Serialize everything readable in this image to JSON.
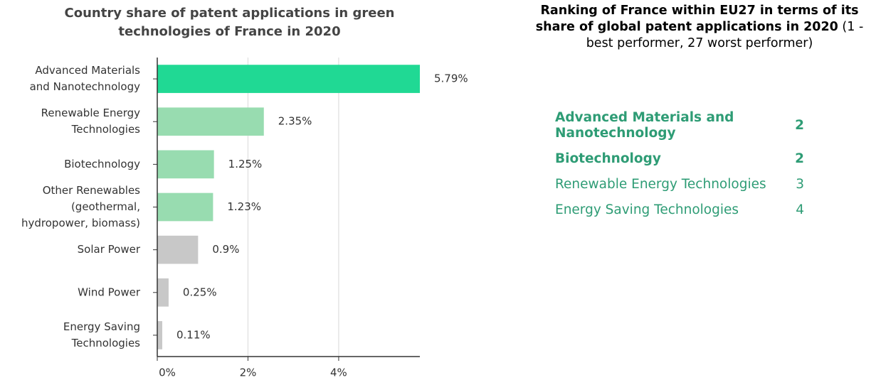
{
  "chart_data": {
    "type": "bar",
    "orientation": "horizontal",
    "title": "Country share of patent applications in green technologies of France in 2020",
    "categories": [
      [
        "Advanced Materials",
        "and Nanotechnology"
      ],
      [
        "Renewable Energy",
        "Technologies"
      ],
      [
        "Biotechnology"
      ],
      [
        "Other Renewables",
        "(geothermal,",
        "hydropower, biomass)"
      ],
      [
        "Solar Power"
      ],
      [
        "Wind Power"
      ],
      [
        "Energy Saving",
        "Technologies"
      ]
    ],
    "values": [
      5.79,
      2.35,
      1.25,
      1.23,
      0.9,
      0.25,
      0.11
    ],
    "value_labels": [
      "5.79%",
      "2.35%",
      "1.25%",
      "1.23%",
      "0.9%",
      "0.25%",
      "0.11%"
    ],
    "colors": [
      "#20d994",
      "#98dcb0",
      "#98dcb0",
      "#98dcb0",
      "#c8c8c8",
      "#c8c8c8",
      "#c8c8c8"
    ],
    "xlim": [
      0,
      5.79
    ],
    "xticks": [
      {
        "value": 0,
        "label": "0%"
      },
      {
        "value": 2,
        "label": "2%"
      },
      {
        "value": 4,
        "label": "4%"
      }
    ],
    "grid": true
  },
  "ranking": {
    "title": "Ranking of France within EU27 in terms of its share of global patent applications in 2020",
    "note": "(1 - best performer, 27 worst performer)",
    "color": "#2e9c75",
    "rows": [
      {
        "label": "Advanced Materials and Nanotechnology",
        "rank": 2,
        "bold": true
      },
      {
        "label": "Biotechnology",
        "rank": 2,
        "bold": true
      },
      {
        "label": "Renewable Energy Technologies",
        "rank": 3,
        "bold": false
      },
      {
        "label": "Energy Saving Technologies",
        "rank": 4,
        "bold": false
      }
    ]
  }
}
